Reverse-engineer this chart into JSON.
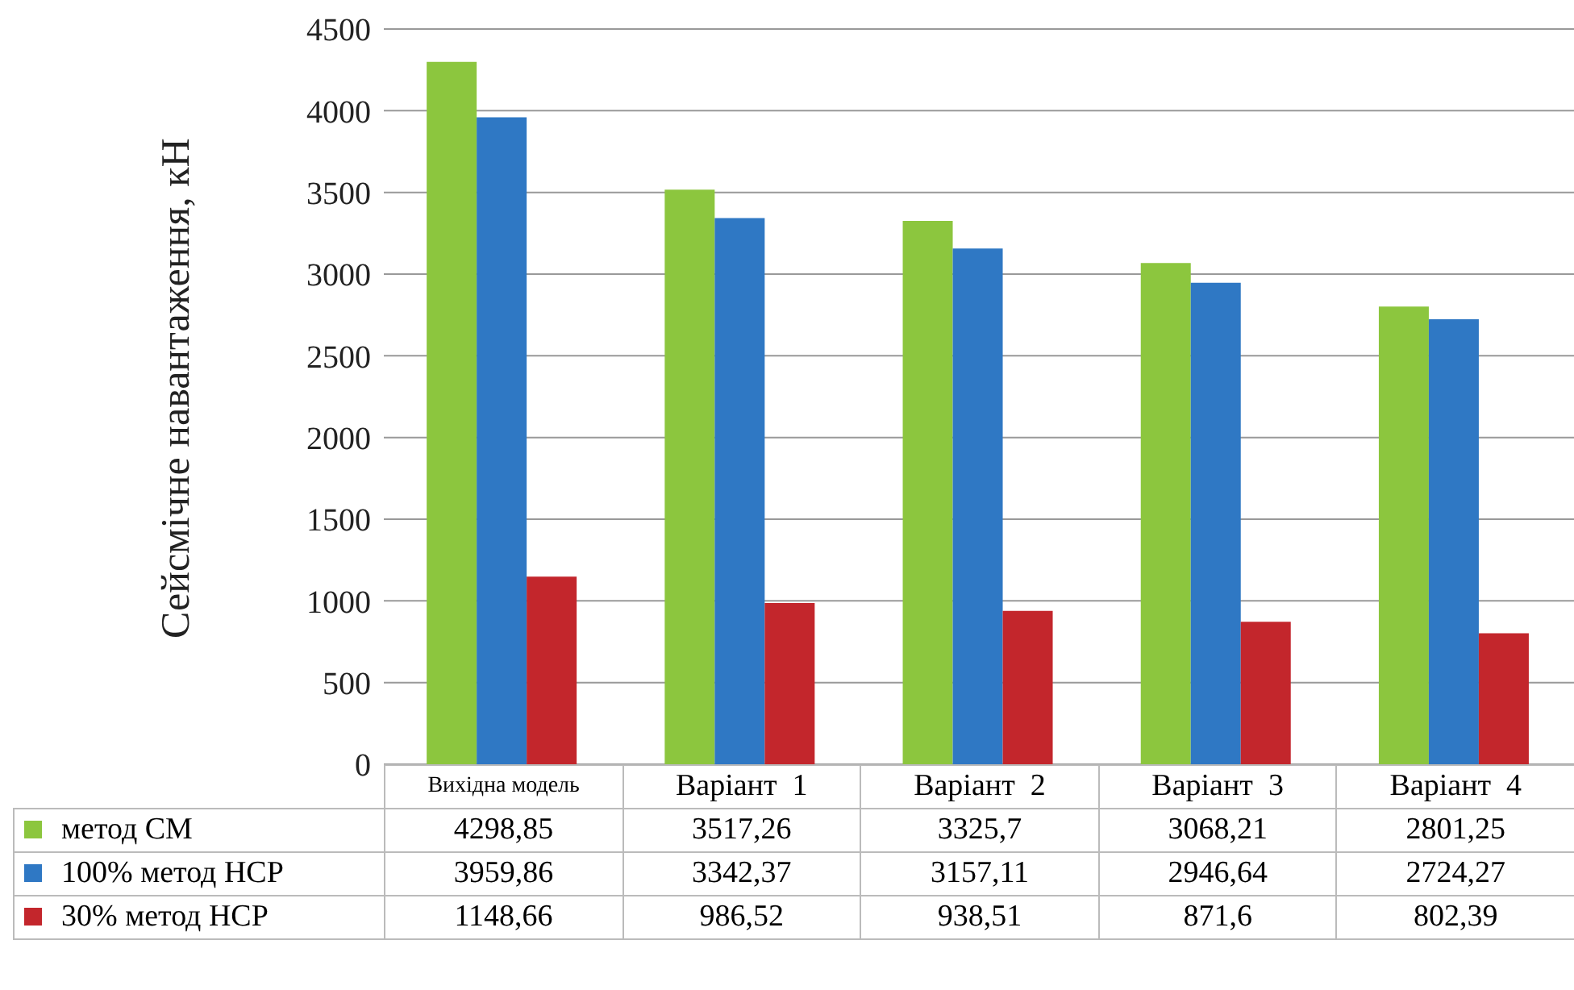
{
  "chart_data": {
    "type": "bar",
    "ylabel": "Сейсмічне навантаження, кН",
    "categories": [
      "Вихідна модель",
      "Варіант  1",
      "Варіант  2",
      "Варіант  3",
      "Варіант  4"
    ],
    "series": [
      {
        "name": "метод СМ",
        "color": "#8cc63e",
        "values": [
          4298.85,
          3517.26,
          3325.7,
          3068.21,
          2801.25
        ],
        "value_labels": [
          "4298,85",
          "3517,26",
          "3325,7",
          "3068,21",
          "2801,25"
        ]
      },
      {
        "name": "100% метод НСР",
        "color": "#2f78c4",
        "values": [
          3959.86,
          3342.37,
          3157.11,
          2946.64,
          2724.27
        ],
        "value_labels": [
          "3959,86",
          "3342,37",
          "3157,11",
          "2946,64",
          "2724,27"
        ]
      },
      {
        "name": "30% метод НСР",
        "color": "#c3262c",
        "values": [
          1148.66,
          986.52,
          938.51,
          871.6,
          802.39
        ],
        "value_labels": [
          "1148,66",
          "986,52",
          "938,51",
          "871,6",
          "802,39"
        ]
      }
    ],
    "ylim": [
      0,
      4500
    ],
    "yticks": [
      0,
      500,
      1000,
      1500,
      2000,
      2500,
      3000,
      3500,
      4000,
      4500
    ],
    "grid": "y",
    "legend": "bottom left"
  }
}
